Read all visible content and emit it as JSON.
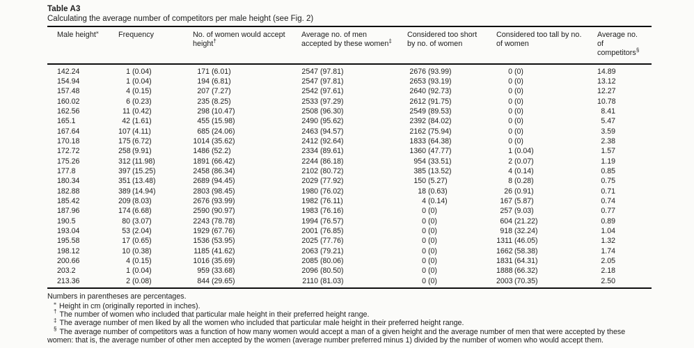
{
  "table": {
    "id": "Table A3",
    "caption": "Calculating the average number of competitors per male height (see Fig. 2)",
    "columns": [
      {
        "label": "Male height",
        "sup": "⁎"
      },
      {
        "label": "Frequency",
        "sup": ""
      },
      {
        "label": "No. of women would accept height",
        "sup": "†"
      },
      {
        "label": "Average no. of men accepted by these women",
        "sup": "‡"
      },
      {
        "label": "Considered too short by no. of women",
        "sup": ""
      },
      {
        "label": "Considered too tall by no. of women",
        "sup": ""
      },
      {
        "label": "Average no. of competitors",
        "sup": "§"
      }
    ],
    "rows": [
      [
        "142.24",
        "1 (0.04)",
        "171 (6.01)",
        "2547 (97.81)",
        "2676 (93.99)",
        "0 (0)",
        "14.89"
      ],
      [
        "154.94",
        "1 (0.04)",
        "194 (6.81)",
        "2547 (97.81)",
        "2653 (93.19)",
        "0 (0)",
        "13.12"
      ],
      [
        "157.48",
        "4 (0.15)",
        "207 (7.27)",
        "2542 (97.61)",
        "2640 (92.73)",
        "0 (0)",
        "12.27"
      ],
      [
        "160.02",
        "6 (0.23)",
        "235 (8.25)",
        "2533 (97.29)",
        "2612 (91.75)",
        "0 (0)",
        "10.78"
      ],
      [
        "162.56",
        "11 (0.42)",
        "298 (10.47)",
        "2508 (96.30)",
        "2549 (89.53)",
        "0 (0)",
        "8.41"
      ],
      [
        "165.1",
        "42 (1.61)",
        "455 (15.98)",
        "2490 (95.62)",
        "2392 (84.02)",
        "0 (0)",
        "5.47"
      ],
      [
        "167.64",
        "107 (4.11)",
        "685 (24.06)",
        "2463 (94.57)",
        "2162 (75.94)",
        "0 (0)",
        "3.59"
      ],
      [
        "170.18",
        "175 (6.72)",
        "1014 (35.62)",
        "2412 (92.64)",
        "1833 (64.38)",
        "0 (0)",
        "2.38"
      ],
      [
        "172.72",
        "258 (9.91)",
        "1486 (52.2)",
        "2334 (89.61)",
        "1360 (47.77)",
        "1 (0.04)",
        "1.57"
      ],
      [
        "175.26",
        "312 (11.98)",
        "1891 (66.42)",
        "2244 (86.18)",
        "954 (33.51)",
        "2 (0.07)",
        "1.19"
      ],
      [
        "177.8",
        "397 (15.25)",
        "2458 (86.34)",
        "2102 (80.72)",
        "385 (13.52)",
        "4 (0.14)",
        "0.85"
      ],
      [
        "180.34",
        "351 (13.48)",
        "2689 (94.45)",
        "2029 (77.92)",
        "150 (5.27)",
        "8 (0.28)",
        "0.75"
      ],
      [
        "182.88",
        "389 (14.94)",
        "2803 (98.45)",
        "1980 (76.02)",
        "18 (0.63)",
        "26 (0.91)",
        "0.71"
      ],
      [
        "185.42",
        "209 (8.03)",
        "2676 (93.99)",
        "1982 (76.11)",
        "4 (0.14)",
        "167 (5.87)",
        "0.74"
      ],
      [
        "187.96",
        "174 (6.68)",
        "2590 (90.97)",
        "1983 (76.16)",
        "0 (0)",
        "257 (9.03)",
        "0.77"
      ],
      [
        "190.5",
        "80 (3.07)",
        "2243 (78.78)",
        "1994 (76.57)",
        "0 (0)",
        "604 (21.22)",
        "0.89"
      ],
      [
        "193.04",
        "53 (2.04)",
        "1929 (67.76)",
        "2001 (76.85)",
        "0 (0)",
        "918 (32.24)",
        "1.04"
      ],
      [
        "195.58",
        "17 (0.65)",
        "1536 (53.95)",
        "2025 (77.76)",
        "0 (0)",
        "1311 (46.05)",
        "1.32"
      ],
      [
        "198.12",
        "10 (0.38)",
        "1185 (41.62)",
        "2063 (79.21)",
        "0 (0)",
        "1662 (58.38)",
        "1.74"
      ],
      [
        "200.66",
        "4 (0.15)",
        "1016 (35.69)",
        "2085 (80.06)",
        "0 (0)",
        "1831 (64.31)",
        "2.05"
      ],
      [
        "203.2",
        "1 (0.04)",
        "959 (33.68)",
        "2096 (80.50)",
        "0 (0)",
        "1888 (66.32)",
        "2.18"
      ],
      [
        "213.36",
        "2 (0.08)",
        "844 (29.65)",
        "2110 (81.03)",
        "0 (0)",
        "2003 (70.35)",
        "2.50"
      ]
    ]
  },
  "notes": {
    "general": "Numbers in parentheses are percentages.",
    "items": [
      {
        "marker": "⁎",
        "text": "Height in cm (originally reported in inches)."
      },
      {
        "marker": "†",
        "text": "The number of women who included that particular male height in their preferred height range."
      },
      {
        "marker": "‡",
        "text": "The average number of men liked by all the women who included that particular male height in their preferred height range."
      },
      {
        "marker": "§",
        "text": "The average number of competitors was a function of how many women would accept a man of a given height and the average number of men that were accepted by these women: that is, the average number of other men accepted by the women (average number preferred minus 1) divided by the number of women who would accept them."
      }
    ]
  }
}
